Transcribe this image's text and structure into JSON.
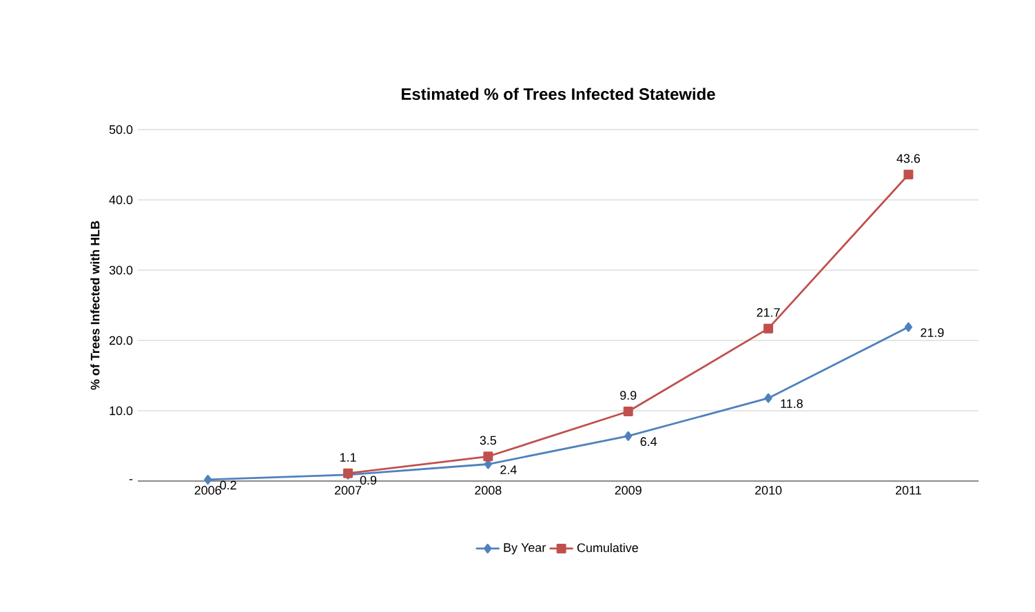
{
  "chart_data": {
    "type": "line",
    "title": "Estimated % of Trees Infected Statewide",
    "ylabel": "% of Trees Infected with HLB",
    "categories": [
      "2006",
      "2007",
      "2008",
      "2009",
      "2010",
      "2011"
    ],
    "series": [
      {
        "name": "By Year",
        "color": "#4f81bd",
        "marker": "diamond",
        "values": [
          0.2,
          0.9,
          2.4,
          6.4,
          11.8,
          21.9
        ],
        "value_labels": [
          "0.2",
          "0.9",
          "2.4",
          "6.4",
          "11.8",
          "21.9"
        ]
      },
      {
        "name": "Cumulative",
        "color": "#c0504d",
        "marker": "square",
        "values": [
          null,
          1.1,
          3.5,
          9.9,
          21.7,
          43.6
        ],
        "value_labels": [
          null,
          "1.1",
          "3.5",
          "9.9",
          "21.7",
          "43.6"
        ]
      }
    ],
    "ylim": [
      0,
      50
    ],
    "yticks": [
      {
        "value": 0,
        "label": "-"
      },
      {
        "value": 10,
        "label": "10.0"
      },
      {
        "value": 20,
        "label": "20.0"
      },
      {
        "value": 30,
        "label": "30.0"
      },
      {
        "value": 40,
        "label": "40.0"
      },
      {
        "value": 50,
        "label": "50.0"
      }
    ],
    "grid": "y",
    "legend": "bottom"
  }
}
